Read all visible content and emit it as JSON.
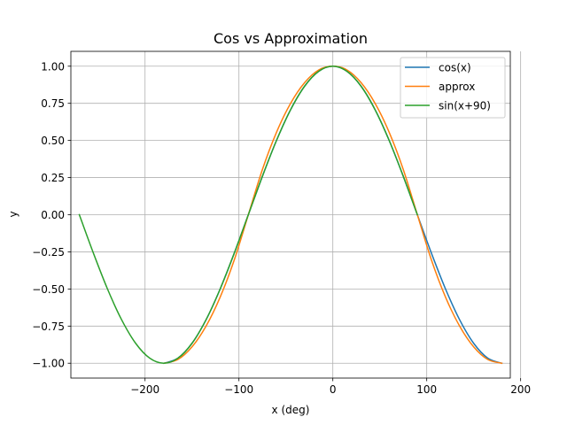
{
  "chart_data": {
    "type": "line",
    "title": "Cos vs Approximation",
    "xlabel": "x (deg)",
    "ylabel": "y",
    "xlim": [
      -279,
      189
    ],
    "ylim": [
      -1.1,
      1.1
    ],
    "x_ticks": [
      -200,
      -100,
      0,
      100,
      200
    ],
    "x_tick_labels": [
      "−200",
      "−100",
      "0",
      "100",
      "200"
    ],
    "y_ticks": [
      -1.0,
      -0.75,
      -0.5,
      -0.25,
      0.0,
      0.25,
      0.5,
      0.75,
      1.0
    ],
    "y_tick_labels": [
      "−1.00",
      "−0.75",
      "−0.50",
      "−0.25",
      "0.00",
      "0.25",
      "0.50",
      "0.75",
      "1.00"
    ],
    "grid": true,
    "legend_position": "top-right",
    "series": [
      {
        "name": "cos(x)",
        "color": "#1f77b4",
        "x": [
          -180,
          -165,
          -150,
          -135,
          -120,
          -105,
          -90,
          -75,
          -60,
          -45,
          -30,
          -15,
          0,
          15,
          30,
          45,
          60,
          75,
          90,
          105,
          120,
          135,
          150,
          165,
          180
        ],
        "y": [
          -1.0,
          -0.966,
          -0.866,
          -0.707,
          -0.5,
          -0.259,
          0.0,
          0.259,
          0.5,
          0.707,
          0.866,
          0.966,
          1.0,
          0.966,
          0.866,
          0.707,
          0.5,
          0.259,
          0.0,
          -0.259,
          -0.5,
          -0.707,
          -0.866,
          -0.966,
          -1.0
        ]
      },
      {
        "name": "approx",
        "color": "#ff7f0e",
        "x": [
          -180,
          -165,
          -150,
          -135,
          -120,
          -105,
          -90,
          -75,
          -60,
          -45,
          -30,
          -15,
          0,
          15,
          30,
          45,
          60,
          75,
          90,
          105,
          120,
          135,
          150,
          165,
          180
        ],
        "y": [
          -1.0,
          -0.975,
          -0.89,
          -0.75,
          -0.555,
          -0.305,
          0.0,
          0.305,
          0.555,
          0.75,
          0.89,
          0.975,
          1.0,
          0.975,
          0.89,
          0.75,
          0.555,
          0.305,
          0.0,
          -0.305,
          -0.555,
          -0.75,
          -0.89,
          -0.975,
          -1.0
        ]
      },
      {
        "name": "sin(x+90)",
        "color": "#2ca02c",
        "x": [
          -270,
          -255,
          -240,
          -225,
          -210,
          -195,
          -180,
          -165,
          -150,
          -135,
          -120,
          -105,
          -90,
          -75,
          -60,
          -45,
          -30,
          -15,
          0,
          15,
          30,
          45,
          60,
          75,
          90
        ],
        "y": [
          0.0,
          -0.259,
          -0.5,
          -0.707,
          -0.866,
          -0.966,
          -1.0,
          -0.966,
          -0.866,
          -0.707,
          -0.5,
          -0.259,
          0.0,
          0.259,
          0.5,
          0.707,
          0.866,
          0.966,
          1.0,
          0.966,
          0.866,
          0.707,
          0.5,
          0.259,
          0.0
        ]
      }
    ]
  }
}
